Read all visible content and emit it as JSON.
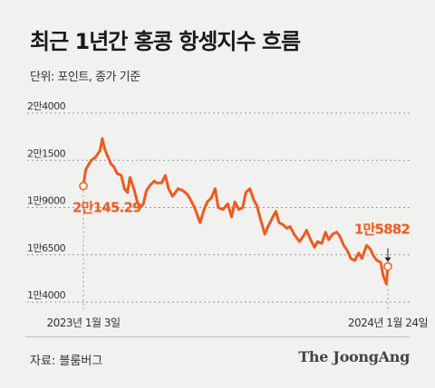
{
  "title": "최근 1년간 홍콩 항셍지수 흐름",
  "unit_text": "단위: 포인트, 종가 기준",
  "source_text": "자료: 블룸버그",
  "brand": "The JoongAng",
  "colors": {
    "line": "#f05a1e",
    "start_label": "#f05a1e",
    "end_label": "#f05a1e",
    "grid": "#999999",
    "axis_text": "#333333"
  },
  "chart_data": {
    "type": "line",
    "title": "최근 1년간 홍콩 항셍지수 흐름",
    "ylabel": "단위: 포인트, 종가 기준",
    "ylim": [
      14000,
      24000
    ],
    "y_ticks": [
      {
        "value": 24000,
        "label": "2만4000"
      },
      {
        "value": 21500,
        "label": "2만1500"
      },
      {
        "value": 19000,
        "label": "1만9000"
      },
      {
        "value": 16500,
        "label": "1만6500"
      },
      {
        "value": 14000,
        "label": "1만4000"
      }
    ],
    "x_labels": [
      "2023년 1월 3일",
      "2024년 1월 24일"
    ],
    "x_range": [
      "2023-01-03",
      "2024-01-24"
    ],
    "start": {
      "date": "2023-01-03",
      "value": 20145.29,
      "label": "2만145.29"
    },
    "end": {
      "date": "2024-01-24",
      "value": 15882,
      "label": "1만5882"
    },
    "series": [
      {
        "values": [
          [
            "2023-01-03",
            20145
          ],
          [
            "2023-01-06",
            21000
          ],
          [
            "2023-01-10",
            21300
          ],
          [
            "2023-01-13",
            21500
          ],
          [
            "2023-01-18",
            21650
          ],
          [
            "2023-01-24",
            22000
          ],
          [
            "2023-01-27",
            22650
          ],
          [
            "2023-01-30",
            22100
          ],
          [
            "2023-02-03",
            21700
          ],
          [
            "2023-02-07",
            21300
          ],
          [
            "2023-02-10",
            21200
          ],
          [
            "2023-02-15",
            20800
          ],
          [
            "2023-02-20",
            20700
          ],
          [
            "2023-02-24",
            20000
          ],
          [
            "2023-02-28",
            19800
          ],
          [
            "2023-03-03",
            20600
          ],
          [
            "2023-03-08",
            20000
          ],
          [
            "2023-03-13",
            19200
          ],
          [
            "2023-03-16",
            19000
          ],
          [
            "2023-03-20",
            19200
          ],
          [
            "2023-03-24",
            19900
          ],
          [
            "2023-03-29",
            20200
          ],
          [
            "2023-04-03",
            20400
          ],
          [
            "2023-04-06",
            20300
          ],
          [
            "2023-04-12",
            20300
          ],
          [
            "2023-04-17",
            20700
          ],
          [
            "2023-04-21",
            20000
          ],
          [
            "2023-04-26",
            19600
          ],
          [
            "2023-05-03",
            20000
          ],
          [
            "2023-05-09",
            19900
          ],
          [
            "2023-05-15",
            19700
          ],
          [
            "2023-05-19",
            19400
          ],
          [
            "2023-05-24",
            19000
          ],
          [
            "2023-05-31",
            18200
          ],
          [
            "2023-06-05",
            18900
          ],
          [
            "2023-06-09",
            19300
          ],
          [
            "2023-06-14",
            19500
          ],
          [
            "2023-06-19",
            20000
          ],
          [
            "2023-06-23",
            19000
          ],
          [
            "2023-06-29",
            18900
          ],
          [
            "2023-07-05",
            19200
          ],
          [
            "2023-07-10",
            18500
          ],
          [
            "2023-07-14",
            19300
          ],
          [
            "2023-07-19",
            18900
          ],
          [
            "2023-07-24",
            19000
          ],
          [
            "2023-07-28",
            19800
          ],
          [
            "2023-08-02",
            20000
          ],
          [
            "2023-08-07",
            19400
          ],
          [
            "2023-08-11",
            19100
          ],
          [
            "2023-08-16",
            18300
          ],
          [
            "2023-08-21",
            17600
          ],
          [
            "2023-08-25",
            18000
          ],
          [
            "2023-08-30",
            18400
          ],
          [
            "2023-09-04",
            18800
          ],
          [
            "2023-09-08",
            18200
          ],
          [
            "2023-09-13",
            18100
          ],
          [
            "2023-09-18",
            17900
          ],
          [
            "2023-09-22",
            18000
          ],
          [
            "2023-09-27",
            17600
          ],
          [
            "2023-10-04",
            17200
          ],
          [
            "2023-10-09",
            17500
          ],
          [
            "2023-10-13",
            17800
          ],
          [
            "2023-10-18",
            17300
          ],
          [
            "2023-10-23",
            16900
          ],
          [
            "2023-10-27",
            17200
          ],
          [
            "2023-11-01",
            17100
          ],
          [
            "2023-11-06",
            17700
          ],
          [
            "2023-11-10",
            17300
          ],
          [
            "2023-11-15",
            17600
          ],
          [
            "2023-11-20",
            17700
          ],
          [
            "2023-11-24",
            17500
          ],
          [
            "2023-11-29",
            17000
          ],
          [
            "2023-12-04",
            16700
          ],
          [
            "2023-12-08",
            16300
          ],
          [
            "2023-12-13",
            16200
          ],
          [
            "2023-12-18",
            16600
          ],
          [
            "2023-12-22",
            16300
          ],
          [
            "2023-12-28",
            17000
          ],
          [
            "2024-01-02",
            16800
          ],
          [
            "2024-01-05",
            16500
          ],
          [
            "2024-01-10",
            16200
          ],
          [
            "2024-01-15",
            16100
          ],
          [
            "2024-01-18",
            15400
          ],
          [
            "2024-01-22",
            14961
          ],
          [
            "2024-01-24",
            15882
          ]
        ]
      }
    ]
  }
}
